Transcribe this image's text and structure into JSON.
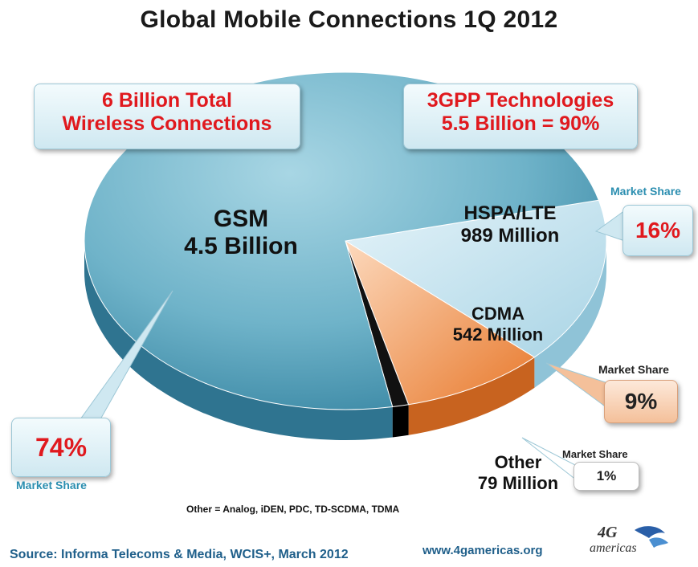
{
  "chart_data": {
    "type": "pie",
    "title": "Global Mobile Connections  1Q 2012",
    "slices": [
      {
        "name": "GSM",
        "value_label": "4.5 Billion",
        "share": 74,
        "share_label": "74%",
        "color": "#6fb3c9"
      },
      {
        "name": "HSPA/LTE",
        "value_label": "989 Million",
        "share": 16,
        "share_label": "16%",
        "color": "#bfe1ee"
      },
      {
        "name": "CDMA",
        "value_label": "542 Million",
        "share": 9,
        "share_label": "9%",
        "color": "#f08a3c"
      },
      {
        "name": "Other",
        "value_label": "79 Million",
        "share": 1,
        "share_label": "1%",
        "color": "#111111"
      }
    ],
    "market_share_label": "Market Share",
    "callouts": {
      "total_line1": "6 Billion Total",
      "total_line2": "Wireless Connections",
      "gpp_line1": "3GPP Technologies",
      "gpp_line2": "5.5 Billion = 90%"
    },
    "footnote": "Other = Analog, iDEN, PDC, TD-SCDMA, TDMA"
  },
  "footer": {
    "source": "Source: Informa Telecoms & Media, WCIS+, March 2012",
    "url": "www.4gamericas.org",
    "logo_4g": "4G",
    "logo_text": "americas"
  }
}
